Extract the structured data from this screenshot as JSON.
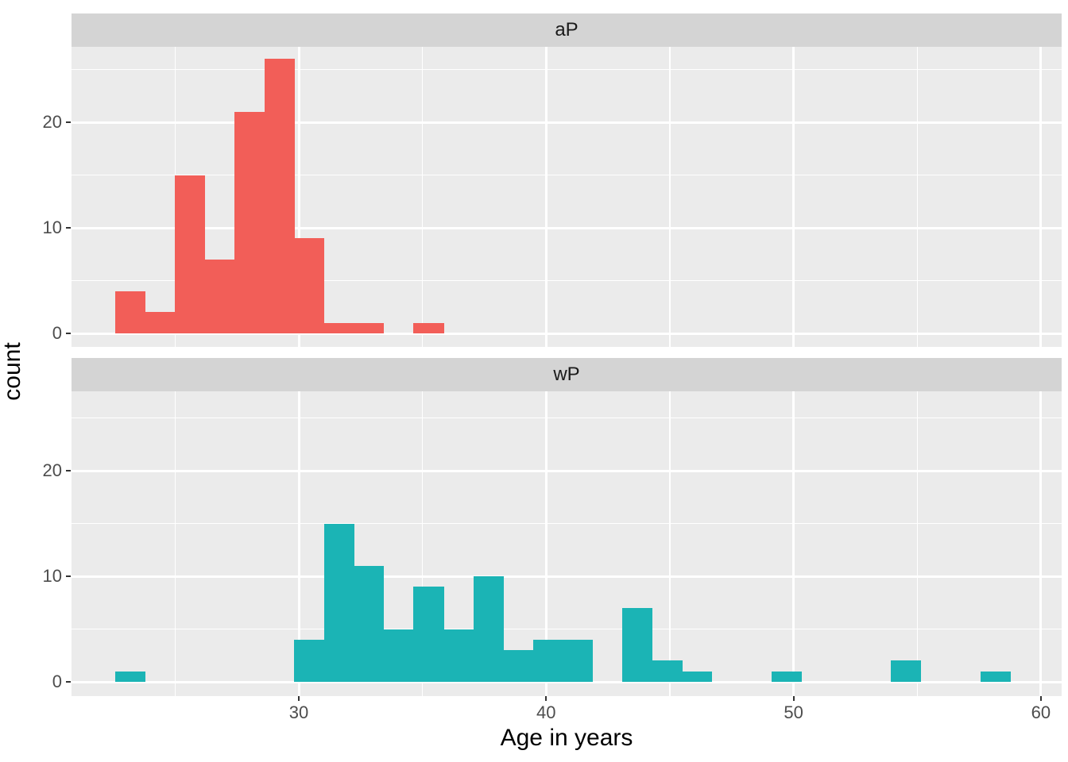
{
  "chart_data": {
    "type": "bar",
    "subtype": "faceted-histogram",
    "title": "",
    "xlabel": "Age in years",
    "ylabel": "count",
    "x_ticks": [
      30,
      40,
      50,
      60
    ],
    "x_minor_ticks": [
      25,
      35,
      45,
      55
    ],
    "y_ticks": [
      0,
      10,
      20
    ],
    "y_minor_ticks": [
      5,
      15,
      25
    ],
    "xlim": [
      20.8,
      60.9
    ],
    "ylim": [
      -1.3,
      27.2
    ],
    "grid": true,
    "legend_position": "none",
    "bin_start": 22.58,
    "bin_width": 1.206,
    "facets": [
      {
        "label": "aP",
        "color": "#F25E58",
        "counts": [
          4,
          2,
          15,
          7,
          21,
          26,
          9,
          1,
          1,
          0,
          1,
          0,
          0,
          0,
          0,
          0,
          0,
          0,
          0,
          0,
          0,
          0,
          0,
          0,
          0,
          0,
          0,
          0,
          0,
          0
        ]
      },
      {
        "label": "wP",
        "color": "#1BB4B5",
        "counts": [
          1,
          0,
          0,
          0,
          0,
          0,
          4,
          15,
          11,
          5,
          9,
          5,
          10,
          3,
          4,
          4,
          0,
          7,
          2,
          1,
          0,
          0,
          1,
          0,
          0,
          0,
          2,
          0,
          0,
          1
        ]
      }
    ],
    "colors": {
      "panel_background": "#EBEBEB",
      "strip_background": "#D4D4D4",
      "gridline": "#FFFFFF",
      "tick_label": "#4D4D4D",
      "axis_title": "#000000",
      "tick_mark": "#333333"
    }
  }
}
